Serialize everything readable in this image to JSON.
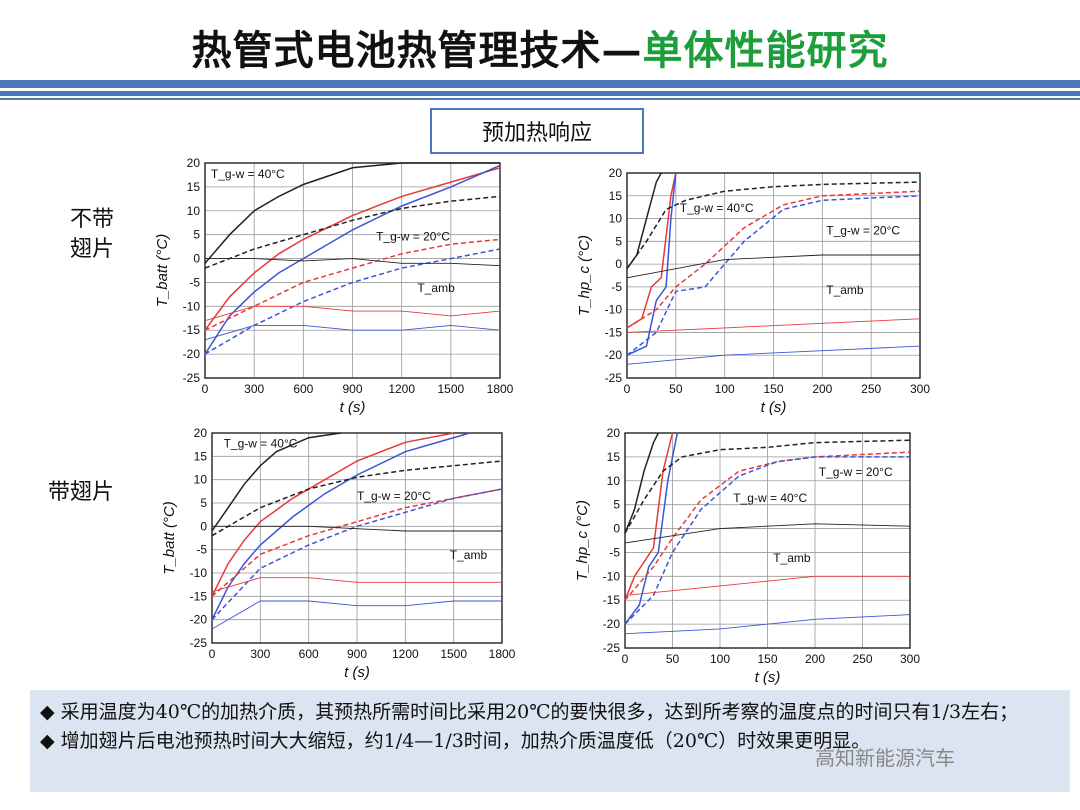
{
  "header": {
    "title_main": "热管式电池热管理技术—",
    "title_sub": "单体性能研究"
  },
  "subtitle": "预加热响应",
  "row_labels": {
    "no_fins": "不带翅片",
    "with_fins": "带翅片"
  },
  "notes": {
    "bullet1": "◆ 采用温度为40℃的加热介质，其预热所需时间比采用20℃的要快很多，达到所考察的温度点的时间只有1/3左右；",
    "bullet2": "◆ 增加翅片后电池预热时间大大缩短，约1/4—1/3时间，加热介质温度低（20℃）时效果更明显。"
  },
  "watermark": "高知新能源汽车",
  "colors": {
    "accent": "#4a78b8",
    "green": "#1e9e3a",
    "red": "#e8383a",
    "blue": "#3a55d8",
    "black": "#222222"
  },
  "chart_data": [
    {
      "type": "line",
      "xlabel": "t (s)",
      "ylabel": "T_batt (°C)",
      "xlim": [
        0,
        1800
      ],
      "ylim": [
        -25,
        20
      ],
      "xticks": [
        0,
        300,
        600,
        900,
        1200,
        1500,
        1800
      ],
      "yticks": [
        -25,
        -20,
        -15,
        -10,
        -5,
        0,
        5,
        10,
        15,
        20
      ],
      "annotations": [
        "T_g-w = 40°C",
        "T_g-w = 20°C",
        "T_amb"
      ],
      "series": [
        {
          "color": "black",
          "dash": false,
          "x": [
            0,
            150,
            300,
            450,
            600,
            900,
            1200,
            1500,
            1800
          ],
          "y": [
            -1,
            5,
            10,
            13,
            15.5,
            19,
            20,
            20,
            20
          ]
        },
        {
          "color": "red",
          "dash": false,
          "x": [
            0,
            150,
            300,
            450,
            600,
            900,
            1200,
            1500,
            1800
          ],
          "y": [
            -15,
            -8,
            -3,
            1,
            4,
            9,
            13,
            16,
            19
          ]
        },
        {
          "color": "blue",
          "dash": false,
          "x": [
            0,
            150,
            300,
            450,
            600,
            900,
            1200,
            1500,
            1800
          ],
          "y": [
            -20,
            -12,
            -7,
            -3,
            0,
            6,
            11,
            15,
            19.5
          ]
        },
        {
          "color": "black",
          "dash": true,
          "x": [
            0,
            300,
            600,
            900,
            1200,
            1500,
            1800
          ],
          "y": [
            -2,
            2,
            5,
            8,
            10.5,
            12,
            13
          ]
        },
        {
          "color": "red",
          "dash": true,
          "x": [
            0,
            300,
            600,
            900,
            1200,
            1500,
            1800
          ],
          "y": [
            -15,
            -10,
            -5,
            -2,
            1,
            3,
            4
          ]
        },
        {
          "color": "blue",
          "dash": true,
          "x": [
            0,
            300,
            600,
            900,
            1200,
            1500,
            1800
          ],
          "y": [
            -20,
            -14,
            -9,
            -5,
            -2,
            0,
            2
          ]
        },
        {
          "color": "black",
          "dash": false,
          "thin": true,
          "x": [
            0,
            300,
            600,
            900,
            1200,
            1500,
            1800
          ],
          "y": [
            0,
            0,
            -0.5,
            0,
            -1,
            -1,
            -1.5
          ]
        },
        {
          "color": "red",
          "dash": false,
          "thin": true,
          "x": [
            0,
            300,
            600,
            900,
            1200,
            1500,
            1800
          ],
          "y": [
            -13,
            -10,
            -10,
            -11,
            -11,
            -12,
            -11
          ]
        },
        {
          "color": "blue",
          "dash": false,
          "thin": true,
          "x": [
            0,
            300,
            600,
            900,
            1200,
            1500,
            1800
          ],
          "y": [
            -17,
            -14,
            -14,
            -15,
            -15,
            -14,
            -15
          ]
        }
      ]
    },
    {
      "type": "line",
      "xlabel": "t (s)",
      "ylabel": "T_hp_c (°C)",
      "xlim": [
        0,
        300
      ],
      "ylim": [
        -25,
        20
      ],
      "xticks": [
        0,
        50,
        100,
        150,
        200,
        250,
        300
      ],
      "yticks": [
        -25,
        -20,
        -15,
        -10,
        -5,
        0,
        5,
        10,
        15,
        20
      ],
      "annotations": [
        "T_g-w = 40°C",
        "T_g-w = 20°C",
        "T_amb"
      ],
      "series": [
        {
          "color": "black",
          "dash": false,
          "x": [
            0,
            10,
            20,
            30,
            35
          ],
          "y": [
            -1,
            2,
            10,
            18,
            20
          ]
        },
        {
          "color": "red",
          "dash": false,
          "x": [
            0,
            15,
            25,
            35,
            45,
            50
          ],
          "y": [
            -14,
            -12,
            -5,
            -3,
            15,
            20
          ]
        },
        {
          "color": "blue",
          "dash": false,
          "x": [
            0,
            20,
            30,
            40,
            45,
            50
          ],
          "y": [
            -20,
            -18,
            -8,
            -5,
            10,
            20
          ]
        },
        {
          "color": "black",
          "dash": true,
          "x": [
            0,
            20,
            40,
            60,
            100,
            150,
            200,
            300
          ],
          "y": [
            -1,
            5,
            12,
            14,
            16,
            17,
            17.5,
            18
          ]
        },
        {
          "color": "red",
          "dash": true,
          "x": [
            0,
            30,
            50,
            80,
            120,
            160,
            200,
            300
          ],
          "y": [
            -14,
            -10,
            -5,
            0,
            8,
            13,
            15,
            16
          ]
        },
        {
          "color": "blue",
          "dash": true,
          "x": [
            0,
            30,
            50,
            80,
            120,
            160,
            200,
            300
          ],
          "y": [
            -20,
            -15,
            -6,
            -5,
            5,
            12,
            14,
            15
          ]
        },
        {
          "color": "black",
          "dash": false,
          "thin": true,
          "x": [
            0,
            100,
            200,
            300
          ],
          "y": [
            -3,
            1,
            2,
            2
          ]
        },
        {
          "color": "red",
          "dash": false,
          "thin": true,
          "x": [
            0,
            100,
            200,
            300
          ],
          "y": [
            -15,
            -14,
            -13,
            -12
          ]
        },
        {
          "color": "blue",
          "dash": false,
          "thin": true,
          "x": [
            0,
            100,
            200,
            300
          ],
          "y": [
            -22,
            -20,
            -19,
            -18
          ]
        }
      ]
    },
    {
      "type": "line",
      "xlabel": "t (s)",
      "ylabel": "T_batt (°C)",
      "xlim": [
        0,
        1800
      ],
      "ylim": [
        -25,
        20
      ],
      "xticks": [
        0,
        300,
        600,
        900,
        1200,
        1500,
        1800
      ],
      "yticks": [
        -25,
        -20,
        -15,
        -10,
        -5,
        0,
        5,
        10,
        15,
        20
      ],
      "annotations": [
        "T_g-w = 40°C",
        "T_g-w = 20°C",
        "T_amb"
      ],
      "series": [
        {
          "color": "black",
          "dash": false,
          "x": [
            0,
            100,
            200,
            300,
            400,
            600,
            800
          ],
          "y": [
            -1,
            4,
            9,
            13,
            16,
            19,
            20
          ]
        },
        {
          "color": "red",
          "dash": false,
          "x": [
            0,
            100,
            200,
            300,
            500,
            700,
            900,
            1200,
            1500
          ],
          "y": [
            -15,
            -8,
            -3,
            1,
            6,
            10,
            14,
            18,
            20
          ]
        },
        {
          "color": "blue",
          "dash": false,
          "x": [
            0,
            100,
            200,
            300,
            500,
            700,
            900,
            1200,
            1600
          ],
          "y": [
            -20,
            -13,
            -8,
            -4,
            2,
            7,
            11,
            16,
            20
          ]
        },
        {
          "color": "black",
          "dash": true,
          "x": [
            0,
            300,
            600,
            900,
            1200,
            1500,
            1800
          ],
          "y": [
            -2,
            4,
            8,
            10.5,
            12,
            13,
            14
          ]
        },
        {
          "color": "red",
          "dash": true,
          "x": [
            0,
            300,
            600,
            900,
            1200,
            1500,
            1800
          ],
          "y": [
            -15,
            -6,
            -2,
            1,
            4,
            6,
            8
          ]
        },
        {
          "color": "blue",
          "dash": true,
          "x": [
            0,
            300,
            600,
            900,
            1200,
            1500,
            1800
          ],
          "y": [
            -20,
            -9,
            -4,
            0,
            3,
            6,
            8
          ]
        },
        {
          "color": "black",
          "dash": false,
          "thin": true,
          "x": [
            0,
            300,
            600,
            900,
            1200,
            1500,
            1800
          ],
          "y": [
            0,
            0,
            0,
            -0.5,
            -1,
            -1,
            -1
          ]
        },
        {
          "color": "red",
          "dash": false,
          "thin": true,
          "x": [
            0,
            300,
            600,
            900,
            1200,
            1500,
            1800
          ],
          "y": [
            -14,
            -11,
            -11,
            -12,
            -12,
            -12,
            -12
          ]
        },
        {
          "color": "blue",
          "dash": false,
          "thin": true,
          "x": [
            0,
            300,
            600,
            900,
            1200,
            1500,
            1800
          ],
          "y": [
            -22,
            -16,
            -16,
            -17,
            -17,
            -16,
            -16
          ]
        }
      ]
    },
    {
      "type": "line",
      "xlabel": "t (s)",
      "ylabel": "T_hp_c (°C)",
      "xlim": [
        0,
        300
      ],
      "ylim": [
        -25,
        20
      ],
      "xticks": [
        0,
        50,
        100,
        150,
        200,
        250,
        300
      ],
      "yticks": [
        -25,
        -20,
        -15,
        -10,
        -5,
        0,
        5,
        10,
        15,
        20
      ],
      "annotations": [
        "T_g-w = 20°C",
        "T_g-w = 40°C",
        "T_amb"
      ],
      "series": [
        {
          "color": "black",
          "dash": false,
          "x": [
            0,
            10,
            20,
            30,
            35
          ],
          "y": [
            -1,
            4,
            12,
            18,
            20
          ]
        },
        {
          "color": "red",
          "dash": false,
          "x": [
            0,
            10,
            20,
            30,
            40,
            50
          ],
          "y": [
            -15,
            -10,
            -7,
            -4,
            12,
            20
          ]
        },
        {
          "color": "blue",
          "dash": false,
          "x": [
            0,
            15,
            25,
            35,
            45,
            55
          ],
          "y": [
            -20,
            -16,
            -8,
            -5,
            10,
            20
          ]
        },
        {
          "color": "black",
          "dash": true,
          "x": [
            0,
            20,
            40,
            60,
            100,
            150,
            200,
            300
          ],
          "y": [
            -1,
            6,
            12,
            15,
            16.5,
            17,
            18,
            18.5
          ]
        },
        {
          "color": "red",
          "dash": true,
          "x": [
            0,
            30,
            50,
            80,
            120,
            160,
            200,
            300
          ],
          "y": [
            -15,
            -8,
            -2,
            6,
            12,
            14,
            15,
            16
          ]
        },
        {
          "color": "blue",
          "dash": true,
          "x": [
            0,
            30,
            50,
            80,
            120,
            160,
            200,
            300
          ],
          "y": [
            -20,
            -14,
            -5,
            4,
            11,
            14,
            15,
            15
          ]
        },
        {
          "color": "black",
          "dash": false,
          "thin": true,
          "x": [
            0,
            100,
            200,
            300
          ],
          "y": [
            -3,
            0,
            1,
            0.5
          ]
        },
        {
          "color": "red",
          "dash": false,
          "thin": true,
          "x": [
            0,
            100,
            200,
            300
          ],
          "y": [
            -14,
            -12,
            -10,
            -10
          ]
        },
        {
          "color": "blue",
          "dash": false,
          "thin": true,
          "x": [
            0,
            100,
            200,
            300
          ],
          "y": [
            -22,
            -21,
            -19,
            -18
          ]
        }
      ]
    }
  ]
}
